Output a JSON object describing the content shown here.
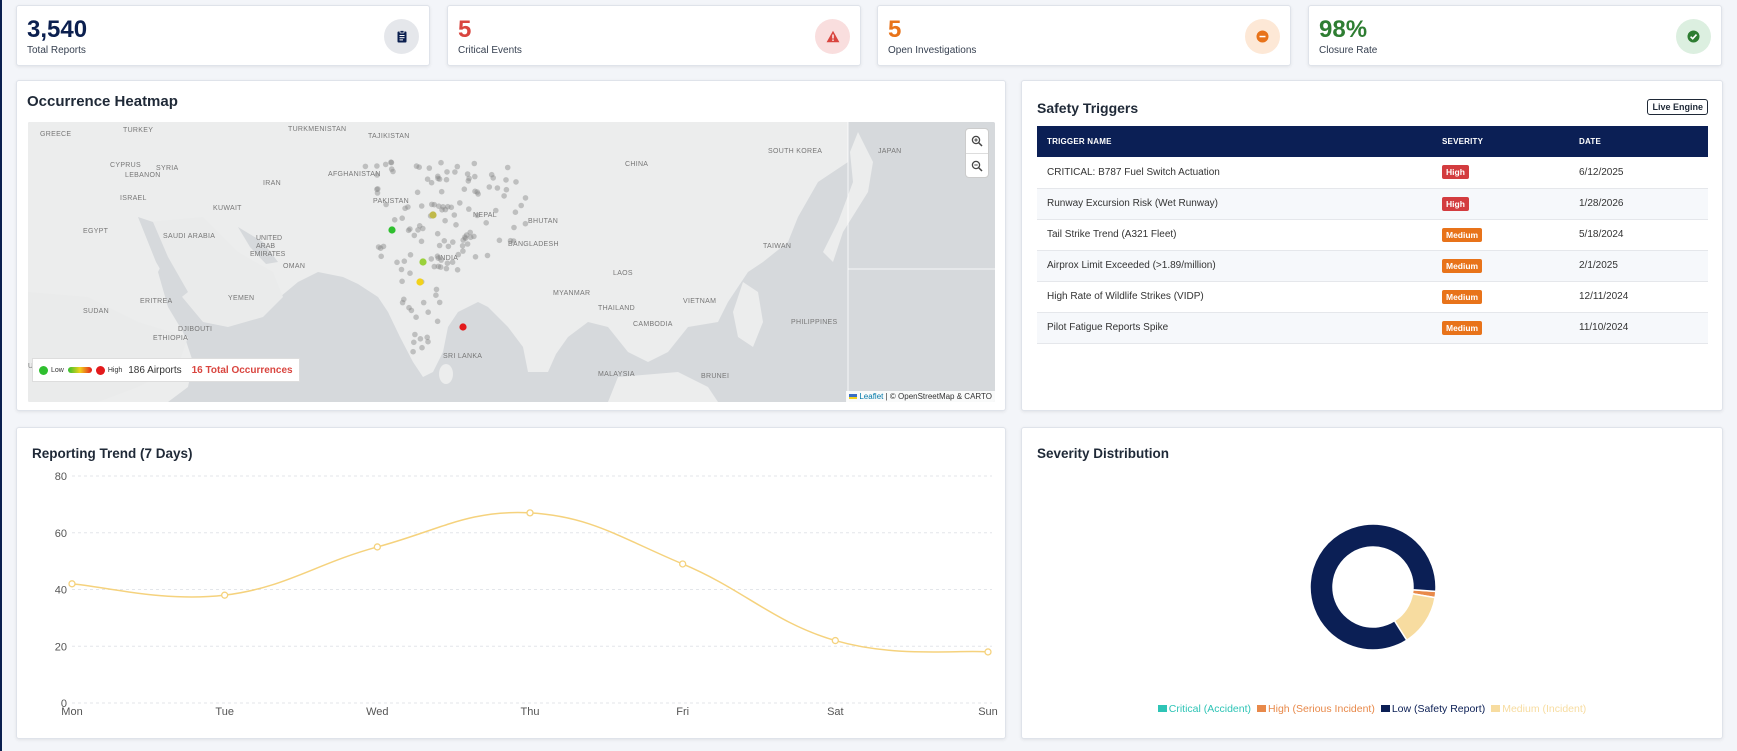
{
  "kpis": [
    {
      "value": "3,540",
      "label": "Total Reports",
      "color": "#0b1f4f",
      "icon": "clipboard-icon",
      "icon_bg": "#e5e7eb",
      "icon_color": "#0b1f4f"
    },
    {
      "value": "5",
      "label": "Critical Events",
      "color": "#d9453f",
      "icon": "warning-icon",
      "icon_bg": "#f9dede",
      "icon_color": "#d9453f"
    },
    {
      "value": "5",
      "label": "Open Investigations",
      "color": "#e8731a",
      "icon": "minus-circle-icon",
      "icon_bg": "#fde8d6",
      "icon_color": "#e8731a"
    },
    {
      "value": "98%",
      "label": "Closure Rate",
      "color": "#2e7d32",
      "icon": "check-circle-icon",
      "icon_bg": "#dcefe0",
      "icon_color": "#2e7d32"
    }
  ],
  "heatmap": {
    "title": "Occurrence Heatmap",
    "legend": {
      "low": "Low",
      "high": "High",
      "airports": "186 Airports",
      "occurrences": "16 Total Occurrences"
    },
    "attribution": {
      "leaflet": "Leaflet",
      "rest": "| © OpenStreetMap & CARTO"
    },
    "map_labels": [
      "GREECE",
      "TURKEY",
      "TURKMENISTAN",
      "TAJIKISTAN",
      "CYPRUS",
      "SYRIA",
      "LEBANON",
      "ISRAEL",
      "IRAN",
      "AFGHANISTAN",
      "PAKISTAN",
      "KUWAIT",
      "EGYPT",
      "SAUDI ARABIA",
      "UNITED ARAB EMIRATES",
      "OMAN",
      "NEPAL",
      "BHUTAN",
      "INDIA",
      "BANGLADESH",
      "CHINA",
      "SOUTH KOREA",
      "JAPAN",
      "TAIWAN",
      "MYANMAR",
      "LAOS",
      "THAILAND",
      "VIETNAM",
      "CAMBODIA",
      "PHILIPPINES",
      "SUDAN",
      "ERITREA",
      "YEMEN",
      "DJIBOUTI",
      "ETHIOPIA",
      "SRI LANKA",
      "MALAYSIA",
      "BRUNEI",
      "UBLIC"
    ]
  },
  "triggers": {
    "title": "Safety Triggers",
    "badge": "Live Engine",
    "columns": [
      "TRIGGER NAME",
      "SEVERITY",
      "DATE"
    ],
    "rows": [
      {
        "name": "CRITICAL: B787 Fuel Switch Actuation",
        "severity": "High",
        "date": "6/12/2025"
      },
      {
        "name": "Runway Excursion Risk (Wet Runway)",
        "severity": "High",
        "date": "1/28/2026"
      },
      {
        "name": "Tail Strike Trend (A321 Fleet)",
        "severity": "Medium",
        "date": "5/18/2024"
      },
      {
        "name": "Airprox Limit Exceeded (>1.89/million)",
        "severity": "Medium",
        "date": "2/1/2025"
      },
      {
        "name": "High Rate of Wildlife Strikes (VIDP)",
        "severity": "Medium",
        "date": "12/11/2024"
      },
      {
        "name": "Pilot Fatigue Reports Spike",
        "severity": "Medium",
        "date": "11/10/2024"
      }
    ]
  },
  "trend": {
    "title": "Reporting Trend (7 Days)",
    "chart_data": {
      "type": "line",
      "categories": [
        "Mon",
        "Tue",
        "Wed",
        "Thu",
        "Fri",
        "Sat",
        "Sun"
      ],
      "values": [
        42,
        38,
        55,
        67,
        49,
        22,
        18
      ],
      "ylim": [
        0,
        80
      ],
      "yticks": [
        0,
        20,
        40,
        60,
        80
      ],
      "color": "#f5d27d",
      "grid": true
    }
  },
  "severity": {
    "title": "Severity Distribution",
    "chart_data": {
      "type": "pie",
      "donut": true,
      "slices": [
        {
          "label": "Critical (Accident)",
          "value": 0,
          "color": "#2ec4b6"
        },
        {
          "label": "High (Serious Incident)",
          "value": 1.5,
          "color": "#e8894a"
        },
        {
          "label": "Low (Safety Report)",
          "value": 80,
          "color": "#0b1f55"
        },
        {
          "label": "Medium (Incident)",
          "value": 12.5,
          "color": "#f7dca0"
        }
      ]
    }
  }
}
